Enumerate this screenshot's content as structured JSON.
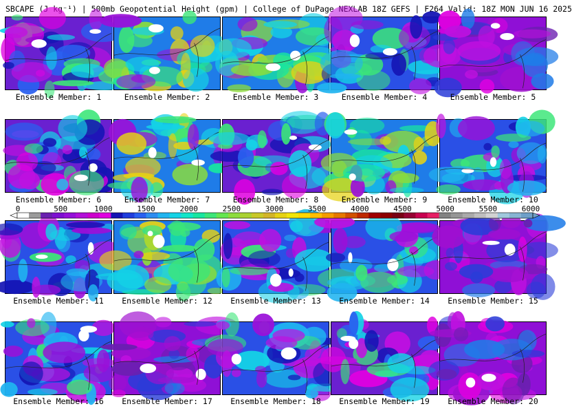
{
  "title": "SBCAPE (J kg⁻¹) | 500mb Geopotential Height (gpm) | College of DuPage NEXLAB 18Z GEFS | F264 Valid: 18Z MON JUN 16 2025",
  "members": [
    {
      "label": "Ensemble Member: 1",
      "palette": "mixed"
    },
    {
      "label": "Ensemble Member: 2",
      "palette": "green"
    },
    {
      "label": "Ensemble Member: 3",
      "palette": "green"
    },
    {
      "label": "Ensemble Member: 4",
      "palette": "blue"
    },
    {
      "label": "Ensemble Member: 5",
      "palette": "purple"
    },
    {
      "label": "Ensemble Member: 6",
      "palette": "mixed"
    },
    {
      "label": "Ensemble Member: 7",
      "palette": "green"
    },
    {
      "label": "Ensemble Member: 8",
      "palette": "mixed"
    },
    {
      "label": "Ensemble Member: 9",
      "palette": "green"
    },
    {
      "label": "Ensemble Member: 10",
      "palette": "blue"
    },
    {
      "label": "Ensemble Member: 11",
      "palette": "blue"
    },
    {
      "label": "Ensemble Member: 12",
      "palette": "green"
    },
    {
      "label": "Ensemble Member: 13",
      "palette": "blue"
    },
    {
      "label": "Ensemble Member: 14",
      "palette": "blue"
    },
    {
      "label": "Ensemble Member: 15",
      "palette": "purple"
    },
    {
      "label": "Ensemble Member: 16",
      "palette": "blue"
    },
    {
      "label": "Ensemble Member: 17",
      "palette": "purple"
    },
    {
      "label": "Ensemble Member: 18",
      "palette": "blue"
    },
    {
      "label": "Ensemble Member: 19",
      "palette": "mixed"
    },
    {
      "label": "Ensemble Member: 20",
      "palette": "purple"
    }
  ],
  "colorbar": {
    "ticks": [
      "0",
      "500",
      "1000",
      "1500",
      "2000",
      "2500",
      "3000",
      "3500",
      "4000",
      "4500",
      "5000",
      "5500",
      "6000"
    ],
    "colors": [
      "#ffffff",
      "#9b9b9b",
      "#6a1fb0",
      "#7d0fd1",
      "#9410d8",
      "#b20fd8",
      "#cc00cc",
      "#e000e0",
      "#1414b4",
      "#1f3cdc",
      "#2860f0",
      "#2c8cf0",
      "#20b4f0",
      "#14d2e6",
      "#10e6c8",
      "#18e6a0",
      "#3ce678",
      "#64e650",
      "#8cdc3c",
      "#aad232",
      "#c8c828",
      "#d2b428",
      "#e6d214",
      "#f0e60a",
      "#ffd700",
      "#ffbe00",
      "#f59b00",
      "#e67800",
      "#d25000",
      "#be2800",
      "#a00000",
      "#8c0000",
      "#780014",
      "#960032",
      "#c80050",
      "#e61e64",
      "#828282",
      "#969696",
      "#aaaaaa",
      "#bebebe",
      "#d2d2d2",
      "#a0c8dc",
      "#87b4d2",
      "#6ea0c8"
    ]
  }
}
